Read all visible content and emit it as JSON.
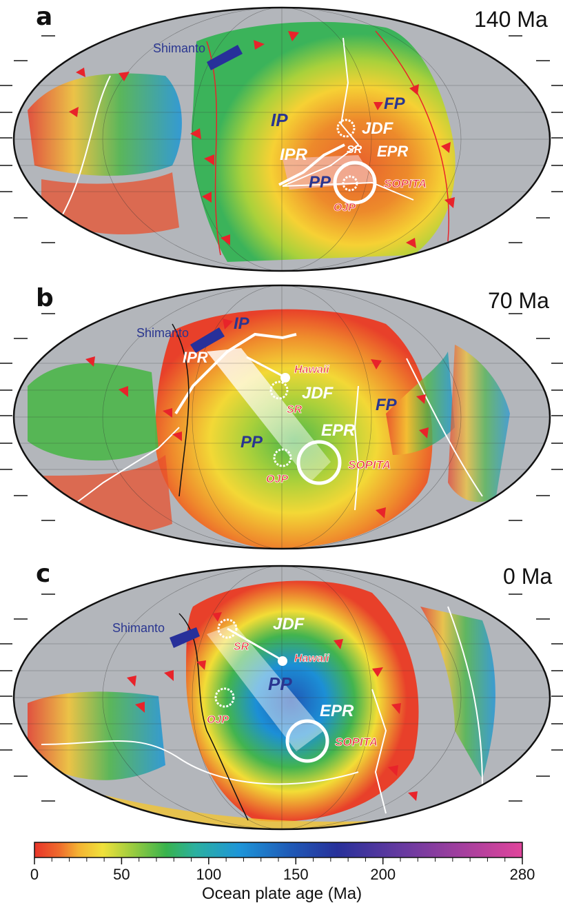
{
  "panels": [
    {
      "letter": "a",
      "age": "140 Ma",
      "labels": {
        "shimanto": "Shimanto",
        "ip": "IP",
        "fp": "FP",
        "jdf": "JDF",
        "ipr": "IPR",
        "epr": "EPR",
        "sr": "SR",
        "pp": "PP",
        "sopita": "SOPITA",
        "ojp": "OJP"
      }
    },
    {
      "letter": "b",
      "age": "70 Ma",
      "labels": {
        "shimanto": "Shimanto",
        "ip": "IP",
        "ipr": "IPR",
        "hawaii": "Hawaii",
        "jdf": "JDF",
        "sr": "SR",
        "fp": "FP",
        "epr": "EPR",
        "pp": "PP",
        "sopita": "SOPITA",
        "ojp": "OJP"
      }
    },
    {
      "letter": "c",
      "age": "0 Ma",
      "labels": {
        "shimanto": "Shimanto",
        "sr": "SR",
        "jdf": "JDF",
        "hawaii": "Hawaii",
        "pp": "PP",
        "epr": "EPR",
        "sopita": "SOPITA",
        "ojp": "OJP"
      }
    }
  ],
  "colorbar": {
    "title": "Ocean plate age (Ma)",
    "ticks": [
      "0",
      "50",
      "100",
      "150",
      "200",
      "280"
    ],
    "min": 0,
    "max": 280,
    "tick_values": [
      0,
      50,
      100,
      150,
      200,
      280
    ],
    "colors": [
      "#e8352a",
      "#f0892b",
      "#f7e636",
      "#49b84a",
      "#1e8fd6",
      "#27309a",
      "#7a3aa0",
      "#e0449b"
    ]
  },
  "colors": {
    "land": "#b3b6bb",
    "ocean_young": "#e8502d",
    "label_blue": "#2a3690",
    "label_red": "#e8232a",
    "subduction": "#e8232a"
  }
}
